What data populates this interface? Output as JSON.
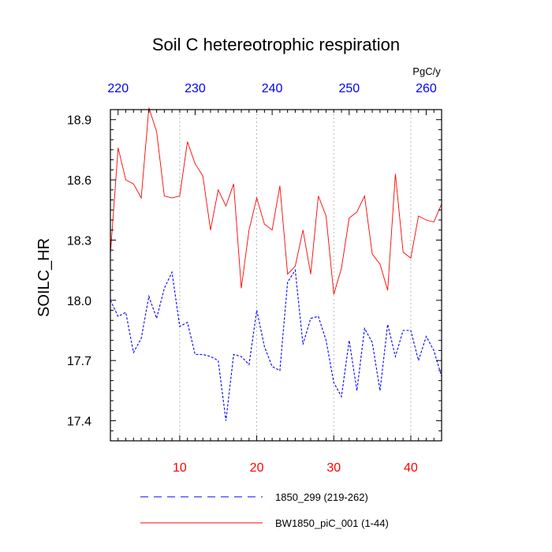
{
  "chart_data": {
    "type": "line",
    "title": "Soil C hetereotrophic respiration",
    "ylabel": "SOILC_HR",
    "units": "PgC/y",
    "xlim": [
      1,
      44
    ],
    "ylim": [
      17.3,
      18.95
    ],
    "bottom_axis": {
      "color": "#ff0000",
      "ticks": [
        10,
        20,
        30,
        40
      ]
    },
    "top_axis": {
      "color": "#0000ff",
      "offset": 218,
      "ticks": [
        220,
        230,
        240,
        250,
        260
      ]
    },
    "y_ticks": [
      17.4,
      17.7,
      18.0,
      18.3,
      18.6,
      18.9
    ],
    "y_tick_labels": [
      "17.4",
      "17.7",
      "18.0",
      "18.3",
      "18.6",
      "18.9"
    ],
    "grid_x": [
      10,
      20,
      30,
      40
    ],
    "series": [
      {
        "name": "1850_299 (219-262)",
        "color": "#0000ff",
        "dash": "dashed",
        "values": [
          18.0,
          17.92,
          17.94,
          17.74,
          17.81,
          18.02,
          17.91,
          18.06,
          18.14,
          17.87,
          17.89,
          17.73,
          17.73,
          17.72,
          17.7,
          17.4,
          17.73,
          17.72,
          17.68,
          17.95,
          17.77,
          17.67,
          17.65,
          18.09,
          18.15,
          17.78,
          17.91,
          17.92,
          17.8,
          17.59,
          17.52,
          17.8,
          17.55,
          17.86,
          17.79,
          17.55,
          17.88,
          17.72,
          17.85,
          17.85,
          17.7,
          17.82,
          17.75,
          17.62
        ]
      },
      {
        "name": "BW1850_piC_001 (1-44)",
        "color": "#ff0000",
        "dash": "solid",
        "values": [
          18.23,
          18.76,
          18.6,
          18.58,
          18.51,
          18.96,
          18.84,
          18.52,
          18.51,
          18.52,
          18.79,
          18.68,
          18.62,
          18.35,
          18.55,
          18.47,
          18.58,
          18.06,
          18.35,
          18.51,
          18.38,
          18.35,
          18.57,
          18.13,
          18.17,
          18.35,
          18.13,
          18.52,
          18.42,
          18.03,
          18.16,
          18.41,
          18.44,
          18.52,
          18.23,
          18.18,
          18.05,
          18.63,
          18.24,
          18.21,
          18.42,
          18.4,
          18.39,
          18.48
        ]
      }
    ]
  }
}
